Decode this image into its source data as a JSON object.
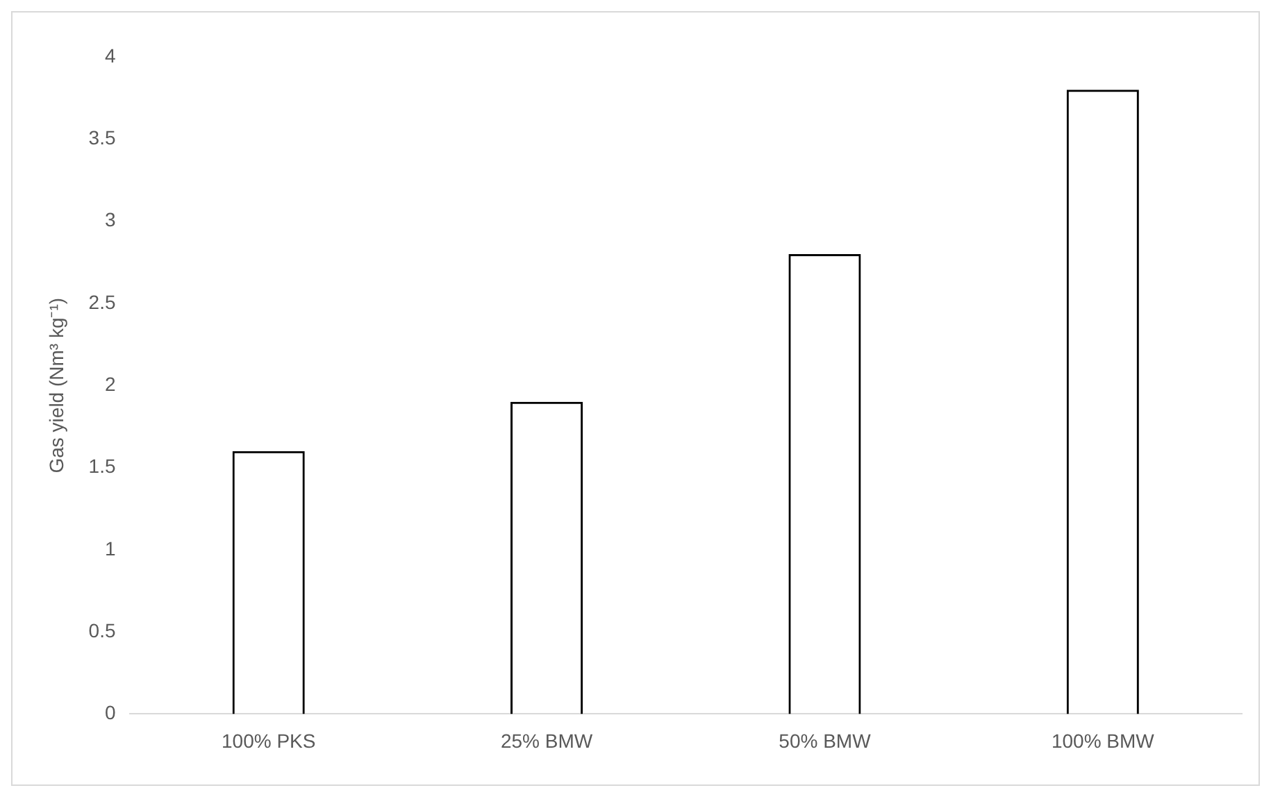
{
  "chart_data": {
    "type": "bar",
    "ylabel": "Gas yield (Nm³ kg⁻¹)",
    "categories": [
      "100% PKS",
      "25% BMW",
      "50% BMW",
      "100% BMW"
    ],
    "values": [
      1.6,
      1.9,
      2.8,
      3.8
    ],
    "color": "#000000",
    "ylim": [
      0,
      4
    ],
    "yticks": [
      0,
      0.5,
      1,
      1.5,
      2,
      2.5,
      3,
      3.5,
      4
    ],
    "grid": false,
    "legend": false
  }
}
